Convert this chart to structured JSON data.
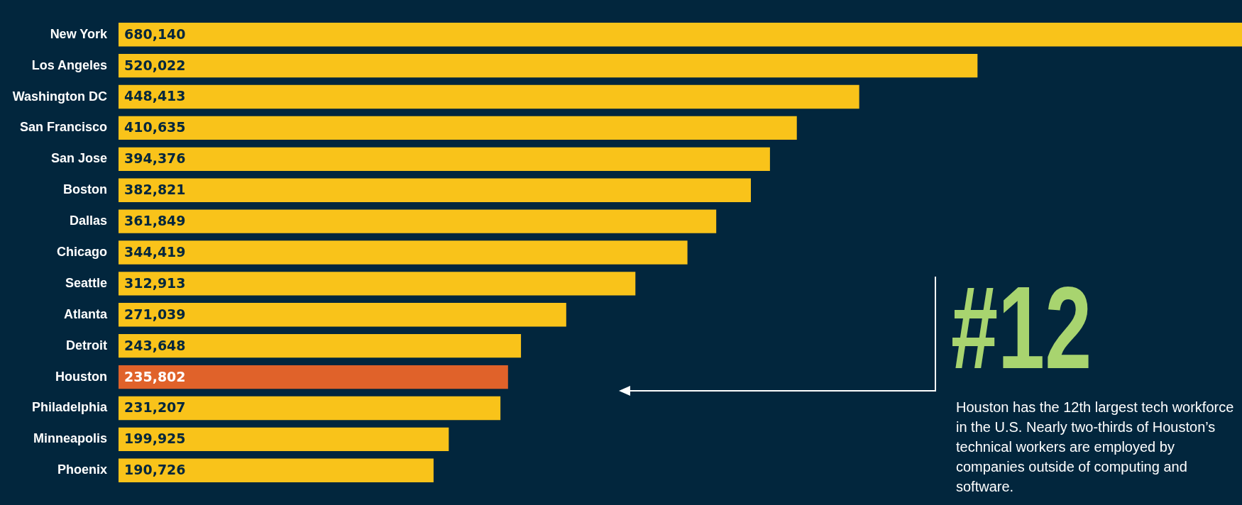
{
  "chart_data": {
    "type": "bar",
    "orientation": "horizontal",
    "categories": [
      "New York",
      "Los Angeles",
      "Washington DC",
      "San Francisco",
      "San Jose",
      "Boston",
      "Dallas",
      "Chicago",
      "Seattle",
      "Atlanta",
      "Detroit",
      "Houston",
      "Philadelphia",
      "Minneapolis",
      "Phoenix"
    ],
    "values": [
      680140,
      520022,
      448413,
      410635,
      394376,
      382821,
      361849,
      344419,
      312913,
      271039,
      243648,
      235802,
      231207,
      199925,
      190726
    ],
    "colors": [
      "#f9c31a",
      "#f9c31a",
      "#f9c31a",
      "#f9c31a",
      "#f9c31a",
      "#f9c31a",
      "#f9c31a",
      "#f9c31a",
      "#f9c31a",
      "#f9c31a",
      "#f9c31a",
      "#e0622a",
      "#f9c31a",
      "#f9c31a",
      "#f9c31a"
    ],
    "value_labels": [
      "680,140",
      "520,022",
      "448,413",
      "410,635",
      "394,376",
      "382,821",
      "361,849",
      "344,419",
      "312,913",
      "271,039",
      "243,648",
      "235,802",
      "231,207",
      "199,925",
      "190,726"
    ],
    "grid": false,
    "legend": false,
    "tick_labels": "y",
    "annotations": [
      "#12",
      "Houston has the 12th largest tech workforce in the U.S. Nearly two-thirds of Houston’s technical workers are employed by companies outside of computing and software."
    ]
  }
}
